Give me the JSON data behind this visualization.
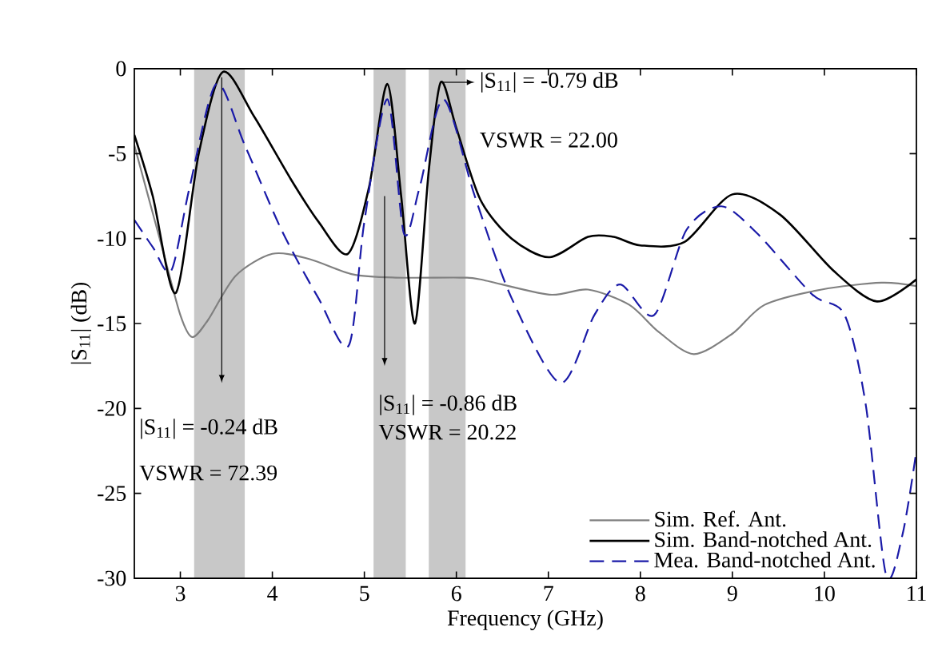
{
  "chart_data": {
    "type": "line",
    "xlabel": "Frequency (GHz)",
    "ylabel": "|S$_{11}$| (dB)",
    "xlim": [
      2.5,
      11
    ],
    "xticks": [
      3,
      4,
      5,
      6,
      7,
      8,
      9,
      10,
      11
    ],
    "ylim": [
      -30,
      0
    ],
    "yticks": [
      -30,
      -25,
      -20,
      -15,
      -10,
      -5,
      0
    ],
    "legend": "bottom right",
    "grid": false,
    "series": [
      {
        "name": "Sim. Ref. Ant.",
        "color": "#808080",
        "line_style": "solid",
        "x": [
          2.5,
          2.8,
          3.0,
          3.13,
          3.3,
          3.6,
          4.0,
          4.4,
          4.87,
          5.34,
          6.04,
          6.26,
          7.01,
          7.43,
          7.88,
          8.2,
          8.58,
          9.0,
          9.35,
          9.97,
          10.62,
          11
        ],
        "values": [
          -4.5,
          -10.5,
          -14.5,
          -15.8,
          -14.8,
          -12.2,
          -10.9,
          -11.2,
          -12.1,
          -12.3,
          -12.3,
          -12.4,
          -13.3,
          -13.0,
          -13.9,
          -15.5,
          -16.8,
          -15.6,
          -13.9,
          -13.0,
          -12.6,
          -12.8
        ]
      },
      {
        "name": "Sim. Band-notched Ant.",
        "color": "#000000",
        "line_style": "solid",
        "x": [
          2.5,
          2.7,
          2.95,
          3.2,
          3.46,
          3.8,
          4.2,
          4.5,
          4.82,
          5.05,
          5.25,
          5.4,
          5.55,
          5.7,
          5.83,
          6.0,
          6.26,
          6.6,
          7.01,
          7.43,
          7.71,
          8.0,
          8.48,
          9.0,
          9.52,
          10.1,
          10.57,
          11
        ],
        "values": [
          -3.9,
          -7.5,
          -13.2,
          -5.0,
          -0.2,
          -2.8,
          -6.5,
          -9.0,
          -10.9,
          -7.0,
          -0.9,
          -7.5,
          -15.0,
          -6.0,
          -0.8,
          -3.5,
          -7.7,
          -10.0,
          -11.1,
          -9.9,
          -9.9,
          -10.4,
          -10.2,
          -7.4,
          -8.6,
          -11.9,
          -13.7,
          -12.4
        ]
      },
      {
        "name": "Mea. Band-notched Ant.",
        "color": "#1a1aa8",
        "line_style": "dashed",
        "x": [
          2.5,
          2.7,
          2.9,
          3.1,
          3.39,
          3.7,
          4.1,
          4.5,
          4.83,
          5.0,
          5.25,
          5.43,
          5.6,
          5.86,
          6.2,
          6.6,
          7.13,
          7.5,
          7.78,
          8.15,
          8.5,
          8.88,
          9.27,
          9.87,
          10.22,
          10.45,
          10.67,
          10.85,
          11
        ],
        "values": [
          -8.9,
          -10.5,
          -11.9,
          -7.0,
          -0.9,
          -4.5,
          -9.5,
          -13.5,
          -16.3,
          -9.0,
          -1.8,
          -9.7,
          -7.0,
          -1.8,
          -7.5,
          -13.5,
          -18.5,
          -14.5,
          -12.7,
          -14.5,
          -9.5,
          -8.1,
          -9.7,
          -13.3,
          -14.5,
          -19.8,
          -29.8,
          -27.4,
          -22.5
        ]
      }
    ],
    "bands": [
      {
        "axis": "x",
        "from": 3.15,
        "to": 3.7,
        "color": "#c8c8c8"
      },
      {
        "axis": "x",
        "from": 5.1,
        "to": 5.45,
        "color": "#c8c8c8"
      },
      {
        "axis": "x",
        "from": 5.7,
        "to": 6.1,
        "color": "#c8c8c8"
      }
    ],
    "annotations": [
      "|S$_{11}$| = -0.24 dB",
      "VSWR = 72.39",
      "|S$_{11}$| = -0.86 dB",
      "VSWR = 20.22",
      "|S$_{11}$| = -0.79 dB",
      "VSWR = 22.00"
    ]
  }
}
